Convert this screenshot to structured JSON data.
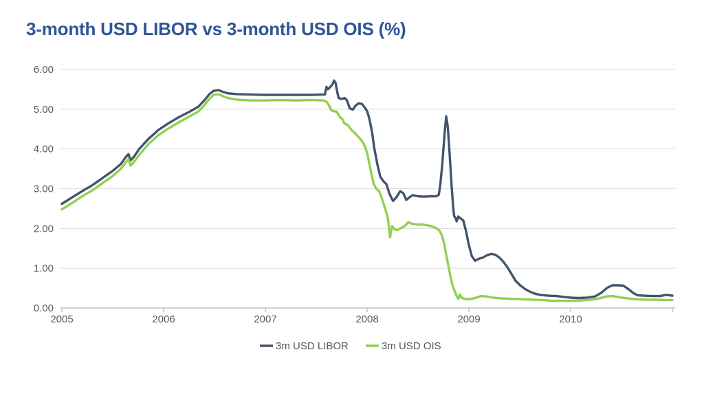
{
  "colors": {
    "title": "#2F5597",
    "axis_text": "#595959",
    "gridline": "#D9D9D9",
    "axis_line": "#BFBFBF",
    "libor": "#44546A",
    "ois": "#92D050",
    "background": "#FFFFFF"
  },
  "chart_data": {
    "type": "line",
    "title": "3-month USD LIBOR vs 3-month USD OIS (%)",
    "x_axis": {
      "range": [
        2005,
        2011
      ],
      "ticks": [
        2005,
        2006,
        2007,
        2008,
        2009,
        2010,
        2011
      ],
      "tick_labels": [
        "2005",
        "2006",
        "2007",
        "2008",
        "2009",
        "2010"
      ],
      "gridlines": false
    },
    "y_axis": {
      "range": [
        0,
        6
      ],
      "ticks": [
        0,
        1,
        2,
        3,
        4,
        5,
        6
      ],
      "tick_labels": [
        "0.00",
        "1.00",
        "2.00",
        "3.00",
        "4.00",
        "5.00",
        "6.00"
      ],
      "gridlines": true
    },
    "legend": {
      "position": "bottom",
      "items": [
        {
          "label": "3m USD LIBOR",
          "color": "#44546A"
        },
        {
          "label": "3m USD OIS",
          "color": "#92D050"
        }
      ]
    },
    "series": [
      {
        "name": "3m USD LIBOR",
        "color": "#44546A",
        "points": [
          [
            2005.0,
            2.62
          ],
          [
            2005.1,
            2.78
          ],
          [
            2005.2,
            2.94
          ],
          [
            2005.3,
            3.09
          ],
          [
            2005.4,
            3.27
          ],
          [
            2005.5,
            3.45
          ],
          [
            2005.58,
            3.62
          ],
          [
            2005.63,
            3.8
          ],
          [
            2005.655,
            3.87
          ],
          [
            2005.675,
            3.71
          ],
          [
            2005.71,
            3.81
          ],
          [
            2005.76,
            4.0
          ],
          [
            2005.85,
            4.25
          ],
          [
            2005.95,
            4.48
          ],
          [
            2006.05,
            4.65
          ],
          [
            2006.15,
            4.8
          ],
          [
            2006.25,
            4.93
          ],
          [
            2006.34,
            5.06
          ],
          [
            2006.4,
            5.22
          ],
          [
            2006.45,
            5.38
          ],
          [
            2006.49,
            5.46
          ],
          [
            2006.54,
            5.48
          ],
          [
            2006.58,
            5.44
          ],
          [
            2006.63,
            5.4
          ],
          [
            2006.72,
            5.38
          ],
          [
            2006.85,
            5.37
          ],
          [
            2007.0,
            5.36
          ],
          [
            2007.15,
            5.36
          ],
          [
            2007.3,
            5.36
          ],
          [
            2007.45,
            5.36
          ],
          [
            2007.585,
            5.37
          ],
          [
            2007.6,
            5.56
          ],
          [
            2007.615,
            5.5
          ],
          [
            2007.635,
            5.55
          ],
          [
            2007.66,
            5.63
          ],
          [
            2007.675,
            5.72
          ],
          [
            2007.69,
            5.66
          ],
          [
            2007.705,
            5.45
          ],
          [
            2007.72,
            5.28
          ],
          [
            2007.75,
            5.26
          ],
          [
            2007.78,
            5.28
          ],
          [
            2007.8,
            5.23
          ],
          [
            2007.83,
            5.02
          ],
          [
            2007.86,
            4.99
          ],
          [
            2007.89,
            5.1
          ],
          [
            2007.92,
            5.15
          ],
          [
            2007.95,
            5.13
          ],
          [
            2007.98,
            5.03
          ],
          [
            2008.0,
            4.95
          ],
          [
            2008.02,
            4.78
          ],
          [
            2008.05,
            4.4
          ],
          [
            2008.07,
            4.02
          ],
          [
            2008.1,
            3.62
          ],
          [
            2008.13,
            3.3
          ],
          [
            2008.16,
            3.19
          ],
          [
            2008.19,
            3.11
          ],
          [
            2008.22,
            2.87
          ],
          [
            2008.255,
            2.69
          ],
          [
            2008.29,
            2.79
          ],
          [
            2008.325,
            2.94
          ],
          [
            2008.355,
            2.89
          ],
          [
            2008.385,
            2.72
          ],
          [
            2008.42,
            2.79
          ],
          [
            2008.45,
            2.84
          ],
          [
            2008.5,
            2.81
          ],
          [
            2008.56,
            2.8
          ],
          [
            2008.62,
            2.81
          ],
          [
            2008.68,
            2.81
          ],
          [
            2008.705,
            2.85
          ],
          [
            2008.72,
            3.13
          ],
          [
            2008.74,
            3.65
          ],
          [
            2008.76,
            4.35
          ],
          [
            2008.777,
            4.82
          ],
          [
            2008.793,
            4.55
          ],
          [
            2008.81,
            3.9
          ],
          [
            2008.83,
            3.1
          ],
          [
            2008.845,
            2.55
          ],
          [
            2008.855,
            2.32
          ],
          [
            2008.87,
            2.25
          ],
          [
            2008.88,
            2.18
          ],
          [
            2008.895,
            2.3
          ],
          [
            2008.92,
            2.25
          ],
          [
            2008.945,
            2.2
          ],
          [
            2008.97,
            1.95
          ],
          [
            2009.0,
            1.58
          ],
          [
            2009.03,
            1.3
          ],
          [
            2009.06,
            1.19
          ],
          [
            2009.1,
            1.24
          ],
          [
            2009.14,
            1.27
          ],
          [
            2009.18,
            1.33
          ],
          [
            2009.22,
            1.36
          ],
          [
            2009.26,
            1.34
          ],
          [
            2009.3,
            1.27
          ],
          [
            2009.34,
            1.16
          ],
          [
            2009.38,
            1.02
          ],
          [
            2009.42,
            0.85
          ],
          [
            2009.46,
            0.68
          ],
          [
            2009.5,
            0.58
          ],
          [
            2009.55,
            0.48
          ],
          [
            2009.6,
            0.41
          ],
          [
            2009.65,
            0.36
          ],
          [
            2009.7,
            0.33
          ],
          [
            2009.78,
            0.31
          ],
          [
            2009.86,
            0.3
          ],
          [
            2009.93,
            0.28
          ],
          [
            2010.0,
            0.26
          ],
          [
            2010.08,
            0.25
          ],
          [
            2010.16,
            0.26
          ],
          [
            2010.24,
            0.29
          ],
          [
            2010.3,
            0.38
          ],
          [
            2010.36,
            0.51
          ],
          [
            2010.41,
            0.57
          ],
          [
            2010.47,
            0.57
          ],
          [
            2010.52,
            0.56
          ],
          [
            2010.57,
            0.47
          ],
          [
            2010.62,
            0.37
          ],
          [
            2010.66,
            0.32
          ],
          [
            2010.72,
            0.31
          ],
          [
            2010.8,
            0.3
          ],
          [
            2010.88,
            0.3
          ],
          [
            2010.94,
            0.33
          ],
          [
            2011.0,
            0.31
          ]
        ]
      },
      {
        "name": "3m USD OIS",
        "color": "#92D050",
        "points": [
          [
            2005.0,
            2.48
          ],
          [
            2005.1,
            2.64
          ],
          [
            2005.2,
            2.81
          ],
          [
            2005.3,
            2.96
          ],
          [
            2005.4,
            3.14
          ],
          [
            2005.5,
            3.32
          ],
          [
            2005.58,
            3.5
          ],
          [
            2005.63,
            3.67
          ],
          [
            2005.655,
            3.74
          ],
          [
            2005.675,
            3.58
          ],
          [
            2005.71,
            3.68
          ],
          [
            2005.77,
            3.88
          ],
          [
            2005.85,
            4.12
          ],
          [
            2005.95,
            4.35
          ],
          [
            2006.05,
            4.52
          ],
          [
            2006.15,
            4.67
          ],
          [
            2006.25,
            4.81
          ],
          [
            2006.34,
            4.94
          ],
          [
            2006.4,
            5.1
          ],
          [
            2006.45,
            5.26
          ],
          [
            2006.49,
            5.36
          ],
          [
            2006.54,
            5.38
          ],
          [
            2006.58,
            5.33
          ],
          [
            2006.63,
            5.28
          ],
          [
            2006.72,
            5.24
          ],
          [
            2006.85,
            5.22
          ],
          [
            2007.0,
            5.22
          ],
          [
            2007.15,
            5.23
          ],
          [
            2007.3,
            5.22
          ],
          [
            2007.45,
            5.23
          ],
          [
            2007.57,
            5.22
          ],
          [
            2007.6,
            5.19
          ],
          [
            2007.625,
            5.1
          ],
          [
            2007.645,
            4.98
          ],
          [
            2007.67,
            4.95
          ],
          [
            2007.7,
            4.94
          ],
          [
            2007.72,
            4.85
          ],
          [
            2007.735,
            4.79
          ],
          [
            2007.755,
            4.76
          ],
          [
            2007.775,
            4.65
          ],
          [
            2007.81,
            4.6
          ],
          [
            2007.845,
            4.48
          ],
          [
            2007.88,
            4.4
          ],
          [
            2007.915,
            4.3
          ],
          [
            2007.95,
            4.2
          ],
          [
            2007.975,
            4.08
          ],
          [
            2008.0,
            3.9
          ],
          [
            2008.02,
            3.65
          ],
          [
            2008.04,
            3.4
          ],
          [
            2008.065,
            3.12
          ],
          [
            2008.09,
            3.0
          ],
          [
            2008.12,
            2.93
          ],
          [
            2008.15,
            2.72
          ],
          [
            2008.18,
            2.48
          ],
          [
            2008.205,
            2.25
          ],
          [
            2008.225,
            1.78
          ],
          [
            2008.245,
            2.06
          ],
          [
            2008.27,
            1.98
          ],
          [
            2008.3,
            1.96
          ],
          [
            2008.33,
            2.01
          ],
          [
            2008.37,
            2.06
          ],
          [
            2008.405,
            2.16
          ],
          [
            2008.44,
            2.12
          ],
          [
            2008.49,
            2.1
          ],
          [
            2008.54,
            2.1
          ],
          [
            2008.59,
            2.08
          ],
          [
            2008.64,
            2.05
          ],
          [
            2008.68,
            2.01
          ],
          [
            2008.705,
            1.96
          ],
          [
            2008.73,
            1.86
          ],
          [
            2008.755,
            1.65
          ],
          [
            2008.78,
            1.3
          ],
          [
            2008.8,
            1.05
          ],
          [
            2008.82,
            0.78
          ],
          [
            2008.84,
            0.57
          ],
          [
            2008.86,
            0.43
          ],
          [
            2008.88,
            0.3
          ],
          [
            2008.895,
            0.23
          ],
          [
            2008.91,
            0.34
          ],
          [
            2008.93,
            0.26
          ],
          [
            2008.96,
            0.23
          ],
          [
            2009.0,
            0.22
          ],
          [
            2009.06,
            0.25
          ],
          [
            2009.12,
            0.3
          ],
          [
            2009.17,
            0.29
          ],
          [
            2009.24,
            0.26
          ],
          [
            2009.32,
            0.24
          ],
          [
            2009.42,
            0.23
          ],
          [
            2009.52,
            0.22
          ],
          [
            2009.62,
            0.21
          ],
          [
            2009.72,
            0.2
          ],
          [
            2009.82,
            0.18
          ],
          [
            2009.92,
            0.18
          ],
          [
            2010.0,
            0.18
          ],
          [
            2010.1,
            0.19
          ],
          [
            2010.2,
            0.21
          ],
          [
            2010.28,
            0.24
          ],
          [
            2010.35,
            0.29
          ],
          [
            2010.41,
            0.3
          ],
          [
            2010.48,
            0.27
          ],
          [
            2010.56,
            0.24
          ],
          [
            2010.65,
            0.22
          ],
          [
            2010.75,
            0.21
          ],
          [
            2010.85,
            0.21
          ],
          [
            2010.93,
            0.2
          ],
          [
            2011.0,
            0.2
          ]
        ]
      }
    ]
  }
}
